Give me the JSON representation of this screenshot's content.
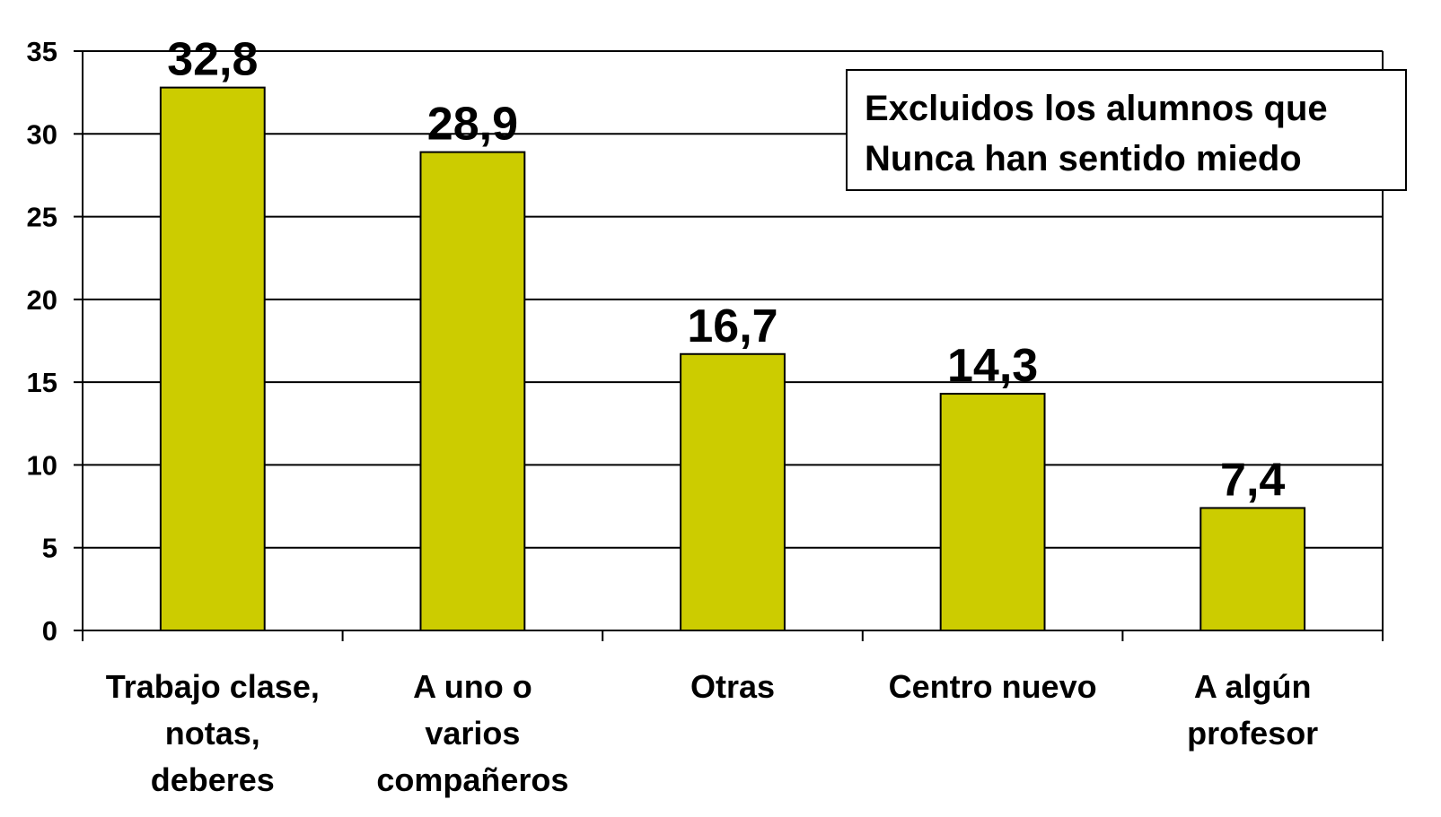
{
  "chart_data": {
    "type": "bar",
    "categories": [
      "Trabajo clase,\nnotas,\ndeberes",
      "A uno o\nvarios\ncompañeros",
      "Otras",
      "Centro nuevo",
      "A algún\nprofesor"
    ],
    "values": [
      32.8,
      28.9,
      16.7,
      14.3,
      7.4
    ],
    "value_labels": [
      "32,8",
      "28,9",
      "16,7",
      "14,3",
      "7,4"
    ],
    "color": "#cccc00",
    "ylim": [
      0,
      35
    ],
    "yticks": [
      0,
      5,
      10,
      15,
      20,
      25,
      30,
      35
    ],
    "grid": true,
    "annotation": [
      "Excluidos los alumnos que",
      "Nunca han sentido miedo"
    ]
  }
}
